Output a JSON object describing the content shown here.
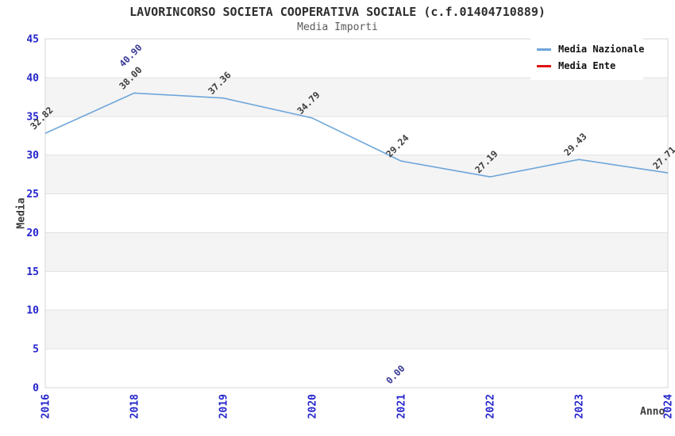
{
  "chart_data": {
    "type": "line",
    "title": "LAVORINCORSO SOCIETA COOPERATIVA SOCIALE (c.f.01404710889)",
    "subtitle": "Media Importi",
    "xlabel": "Anno",
    "ylabel": "Media",
    "categories": [
      "2016",
      "2018",
      "2019",
      "2020",
      "2021",
      "2022",
      "2023",
      "2024"
    ],
    "series": [
      {
        "name": "Media Nazionale",
        "color": "#6ea6d9",
        "label_color": "#3c3c3c",
        "values": [
          32.82,
          38.0,
          37.36,
          34.79,
          29.24,
          27.19,
          29.43,
          27.71
        ]
      },
      {
        "name": "Media Ente",
        "color": "#e01111",
        "label_color": "#373795",
        "values": [
          null,
          40.9,
          null,
          null,
          0.0,
          null,
          null,
          null
        ]
      }
    ],
    "ylim": [
      0,
      45
    ],
    "ytick_step": 5,
    "yticks": [
      0,
      5,
      10,
      15,
      20,
      25,
      30,
      35,
      40,
      45
    ],
    "legend_position": "top-right",
    "grid": "horizontal-bands",
    "colors": {
      "tick": "#2424cc",
      "band": "#f4f4f4",
      "grid": "#e2e2e2",
      "border": "#d6d6d6",
      "title": "#2e2e2e",
      "subtitle": "#5a5a5a",
      "axis_label": "#3c3c3c",
      "legend_text": "#111111"
    }
  }
}
